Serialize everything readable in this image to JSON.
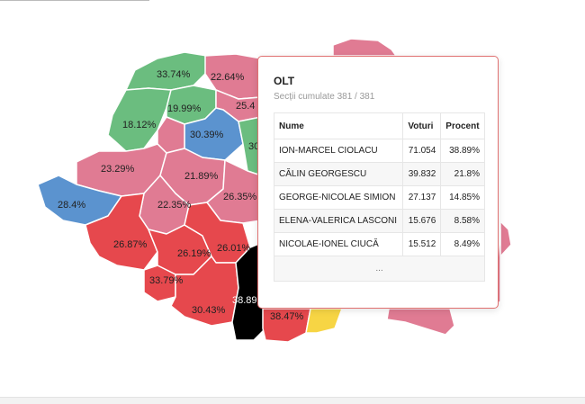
{
  "map": {
    "labels": {
      "maramures": "33.74%",
      "suceava": "22.64%",
      "bistrita": "19.99%",
      "botosani_partial": "25.4",
      "salaj": "18.12%",
      "mures": "30.39%",
      "neamt_partial": "30",
      "bihor": "23.29%",
      "sibiu": "21.89%",
      "hunedoara": "22.35%",
      "covasna": "26.35%",
      "timis": "28.4%",
      "caras": "26.87%",
      "valcea": "26.19%",
      "arges": "26.01%",
      "mehedinti": "33.79%",
      "dolj": "30.43%",
      "olt": "38.89",
      "teleorman": "38.47%"
    },
    "colors": {
      "green": "#6bbd7f",
      "pink": "#e07b93",
      "blue": "#5b93cf",
      "red": "#e6484d",
      "black": "#000000",
      "yellow": "#f7d544"
    }
  },
  "tooltip": {
    "title": "OLT",
    "subtitle": "Secții cumulate 381 / 381",
    "headers": {
      "name": "Nume",
      "votes": "Voturi",
      "percent": "Procent"
    },
    "rows": [
      {
        "name": "ION-MARCEL CIOLACU",
        "votes": "71.054",
        "percent": "38.89%"
      },
      {
        "name": "CĂLIN GEORGESCU",
        "votes": "39.832",
        "percent": "21.8%"
      },
      {
        "name": "GEORGE-NICOLAE SIMION",
        "votes": "27.137",
        "percent": "14.85%"
      },
      {
        "name": "ELENA-VALERICA LASCONI",
        "votes": "15.676",
        "percent": "8.58%"
      },
      {
        "name": "NICOLAE-IONEL CIUCĂ",
        "votes": "15.512",
        "percent": "8.49%"
      }
    ],
    "more": "..."
  }
}
